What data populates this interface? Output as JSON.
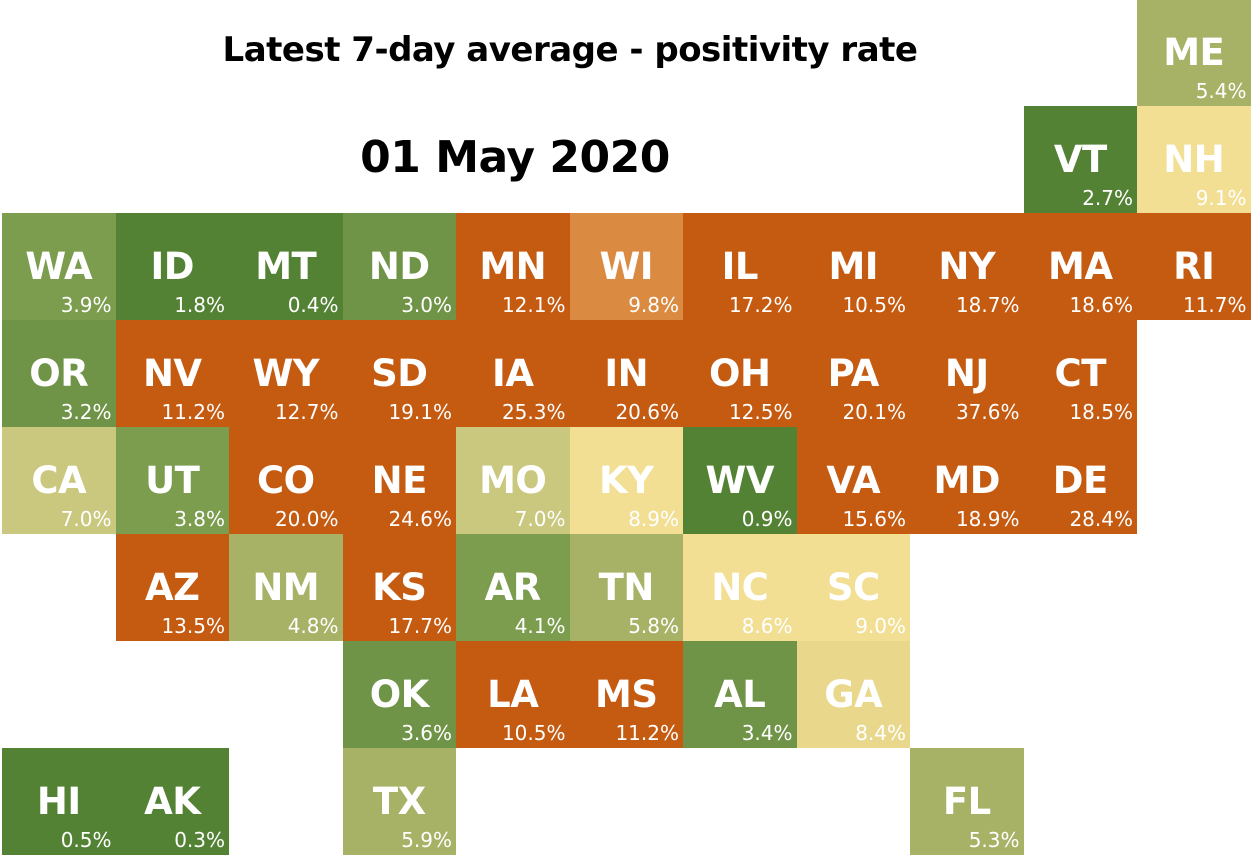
{
  "title": "Latest 7-day average - positivity rate",
  "date": "01 May 2020",
  "colors": {
    "dark_green": "#548235",
    "mid_green": "#709447",
    "light_green": "#7c9c4e",
    "olive": "#a7b266",
    "khaki": "#c9c87e",
    "pale_yellow": "#f2df94",
    "light_orange": "#db8a41",
    "dark_orange": "#c55a11"
  },
  "states": [
    {
      "abbr": "ME",
      "rate": "5.4%",
      "row": 0,
      "col": 10,
      "color": "#a7b266"
    },
    {
      "abbr": "VT",
      "rate": "2.7%",
      "row": 1,
      "col": 9,
      "color": "#548235"
    },
    {
      "abbr": "NH",
      "rate": "9.1%",
      "row": 1,
      "col": 10,
      "color": "#f2df94"
    },
    {
      "abbr": "WA",
      "rate": "3.9%",
      "row": 2,
      "col": 0,
      "color": "#7c9c4e"
    },
    {
      "abbr": "ID",
      "rate": "1.8%",
      "row": 2,
      "col": 1,
      "color": "#548235"
    },
    {
      "abbr": "MT",
      "rate": "0.4%",
      "row": 2,
      "col": 2,
      "color": "#548235"
    },
    {
      "abbr": "ND",
      "rate": "3.0%",
      "row": 2,
      "col": 3,
      "color": "#709447"
    },
    {
      "abbr": "MN",
      "rate": "12.1%",
      "row": 2,
      "col": 4,
      "color": "#c55a11"
    },
    {
      "abbr": "WI",
      "rate": "9.8%",
      "row": 2,
      "col": 5,
      "color": "#db8a41"
    },
    {
      "abbr": "IL",
      "rate": "17.2%",
      "row": 2,
      "col": 6,
      "color": "#c55a11"
    },
    {
      "abbr": "MI",
      "rate": "10.5%",
      "row": 2,
      "col": 7,
      "color": "#c55a11"
    },
    {
      "abbr": "NY",
      "rate": "18.7%",
      "row": 2,
      "col": 8,
      "color": "#c55a11"
    },
    {
      "abbr": "MA",
      "rate": "18.6%",
      "row": 2,
      "col": 9,
      "color": "#c55a11"
    },
    {
      "abbr": "RI",
      "rate": "11.7%",
      "row": 2,
      "col": 10,
      "color": "#c55a11"
    },
    {
      "abbr": "OR",
      "rate": "3.2%",
      "row": 3,
      "col": 0,
      "color": "#709447"
    },
    {
      "abbr": "NV",
      "rate": "11.2%",
      "row": 3,
      "col": 1,
      "color": "#c55a11"
    },
    {
      "abbr": "WY",
      "rate": "12.7%",
      "row": 3,
      "col": 2,
      "color": "#c55a11"
    },
    {
      "abbr": "SD",
      "rate": "19.1%",
      "row": 3,
      "col": 3,
      "color": "#c55a11"
    },
    {
      "abbr": "IA",
      "rate": "25.3%",
      "row": 3,
      "col": 4,
      "color": "#c55a11"
    },
    {
      "abbr": "IN",
      "rate": "20.6%",
      "row": 3,
      "col": 5,
      "color": "#c55a11"
    },
    {
      "abbr": "OH",
      "rate": "12.5%",
      "row": 3,
      "col": 6,
      "color": "#c55a11"
    },
    {
      "abbr": "PA",
      "rate": "20.1%",
      "row": 3,
      "col": 7,
      "color": "#c55a11"
    },
    {
      "abbr": "NJ",
      "rate": "37.6%",
      "row": 3,
      "col": 8,
      "color": "#c55a11"
    },
    {
      "abbr": "CT",
      "rate": "18.5%",
      "row": 3,
      "col": 9,
      "color": "#c55a11"
    },
    {
      "abbr": "CA",
      "rate": "7.0%",
      "row": 4,
      "col": 0,
      "color": "#c9c87e"
    },
    {
      "abbr": "UT",
      "rate": "3.8%",
      "row": 4,
      "col": 1,
      "color": "#7c9c4e"
    },
    {
      "abbr": "CO",
      "rate": "20.0%",
      "row": 4,
      "col": 2,
      "color": "#c55a11"
    },
    {
      "abbr": "NE",
      "rate": "24.6%",
      "row": 4,
      "col": 3,
      "color": "#c55a11"
    },
    {
      "abbr": "MO",
      "rate": "7.0%",
      "row": 4,
      "col": 4,
      "color": "#c9c87e"
    },
    {
      "abbr": "KY",
      "rate": "8.9%",
      "row": 4,
      "col": 5,
      "color": "#f2df94"
    },
    {
      "abbr": "WV",
      "rate": "0.9%",
      "row": 4,
      "col": 6,
      "color": "#548235"
    },
    {
      "abbr": "VA",
      "rate": "15.6%",
      "row": 4,
      "col": 7,
      "color": "#c55a11"
    },
    {
      "abbr": "MD",
      "rate": "18.9%",
      "row": 4,
      "col": 8,
      "color": "#c55a11"
    },
    {
      "abbr": "DE",
      "rate": "28.4%",
      "row": 4,
      "col": 9,
      "color": "#c55a11"
    },
    {
      "abbr": "AZ",
      "rate": "13.5%",
      "row": 5,
      "col": 1,
      "color": "#c55a11"
    },
    {
      "abbr": "NM",
      "rate": "4.8%",
      "row": 5,
      "col": 2,
      "color": "#a7b266"
    },
    {
      "abbr": "KS",
      "rate": "17.7%",
      "row": 5,
      "col": 3,
      "color": "#c55a11"
    },
    {
      "abbr": "AR",
      "rate": "4.1%",
      "row": 5,
      "col": 4,
      "color": "#7c9c4e"
    },
    {
      "abbr": "TN",
      "rate": "5.8%",
      "row": 5,
      "col": 5,
      "color": "#a7b266"
    },
    {
      "abbr": "NC",
      "rate": "8.6%",
      "row": 5,
      "col": 6,
      "color": "#f2df94"
    },
    {
      "abbr": "SC",
      "rate": "9.0%",
      "row": 5,
      "col": 7,
      "color": "#f2df94"
    },
    {
      "abbr": "OK",
      "rate": "3.6%",
      "row": 6,
      "col": 3,
      "color": "#709447"
    },
    {
      "abbr": "LA",
      "rate": "10.5%",
      "row": 6,
      "col": 4,
      "color": "#c55a11"
    },
    {
      "abbr": "MS",
      "rate": "11.2%",
      "row": 6,
      "col": 5,
      "color": "#c55a11"
    },
    {
      "abbr": "AL",
      "rate": "3.4%",
      "row": 6,
      "col": 6,
      "color": "#709447"
    },
    {
      "abbr": "GA",
      "rate": "8.4%",
      "row": 6,
      "col": 7,
      "color": "#e9d88c"
    },
    {
      "abbr": "HI",
      "rate": "0.5%",
      "row": 7,
      "col": 0,
      "color": "#548235"
    },
    {
      "abbr": "AK",
      "rate": "0.3%",
      "row": 7,
      "col": 1,
      "color": "#548235"
    },
    {
      "abbr": "TX",
      "rate": "5.9%",
      "row": 7,
      "col": 3,
      "color": "#a7b266"
    },
    {
      "abbr": "FL",
      "rate": "5.3%",
      "row": 7,
      "col": 8,
      "color": "#a7b266"
    }
  ]
}
